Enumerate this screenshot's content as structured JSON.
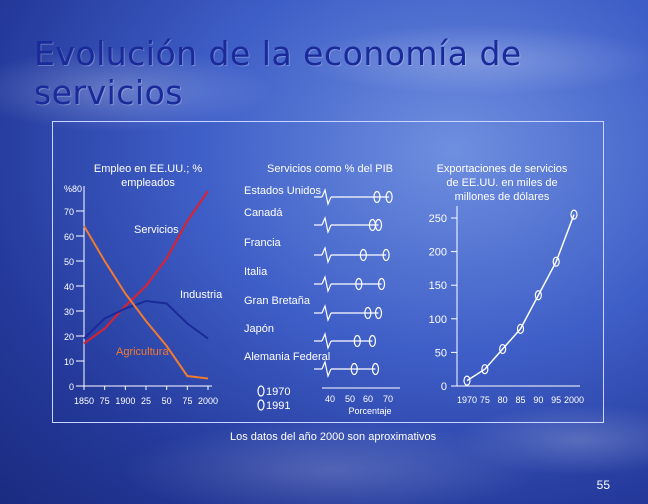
{
  "slide": {
    "title_line1": "Evolución de la economía de",
    "title_line2": "servicios",
    "footnote": "Los datos del año 2000 son aproximativos",
    "page_number": "55"
  },
  "chart_data": [
    {
      "type": "line",
      "title": "Empleo en EE.UU.; % empleados",
      "title_line1": "Empleo en EE.UU.; %",
      "title_line2": "empleados",
      "ylabel": "%80",
      "ylim": [
        0,
        80
      ],
      "y_ticks": [
        "0",
        "10",
        "20",
        "30",
        "40",
        "50",
        "60",
        "70"
      ],
      "x_ticks": [
        "1850",
        "75",
        "1900",
        "25",
        "50",
        "75",
        "2000"
      ],
      "xlim": [
        1850,
        2000
      ],
      "colors": {
        "Servicios": "#e0202a",
        "Industria": "#1a2a9a",
        "Agricultura": "#f07a30"
      },
      "series": [
        {
          "name": "Servicios",
          "x": [
            1850,
            1875,
            1900,
            1925,
            1950,
            1975,
            2000
          ],
          "values": [
            17,
            23,
            32,
            40,
            51,
            66,
            78
          ]
        },
        {
          "name": "Industria",
          "x": [
            1850,
            1875,
            1900,
            1925,
            1950,
            1975,
            2000
          ],
          "values": [
            19,
            27,
            31,
            34,
            33,
            25,
            19
          ]
        },
        {
          "name": "Agricultura",
          "x": [
            1850,
            1875,
            1900,
            1925,
            1950,
            1975,
            2000
          ],
          "values": [
            64,
            50,
            37,
            26,
            16,
            4,
            3
          ]
        }
      ]
    },
    {
      "type": "scatter",
      "title": "Servicios como % del PIB",
      "xlabel": "Porcentaje",
      "x_ticks": [
        "40",
        "50",
        "60",
        "70"
      ],
      "xlim": [
        30,
        75
      ],
      "legend": [
        "1970",
        "1991"
      ],
      "categories": [
        "Estados Unidos",
        "Canadá",
        "Francia",
        "Italia",
        "Gran Bretaña",
        "Japón",
        "Alemania Federal"
      ],
      "series": [
        {
          "name": "1970",
          "values": [
            61,
            58,
            52,
            49,
            55,
            48,
            46
          ]
        },
        {
          "name": "1991",
          "values": [
            69,
            62,
            67,
            64,
            62,
            58,
            60
          ]
        }
      ]
    },
    {
      "type": "line",
      "title": "Exportaciones de servicios de EE.UU. en miles de millones de dólares",
      "title_line1": "Exportaciones de servicios",
      "title_line2": "de EE.UU. en miles de",
      "title_line3": "millones de dólares",
      "y_ticks": [
        "0",
        "50",
        "100",
        "150",
        "200",
        "250"
      ],
      "ylim": [
        0,
        250
      ],
      "x_ticks": [
        "1970",
        "75",
        "80",
        "85",
        "90",
        "95",
        "2000"
      ],
      "xlim": [
        1970,
        2000
      ],
      "series": [
        {
          "name": "Exportaciones",
          "x": [
            1970,
            1975,
            1980,
            1985,
            1990,
            1995,
            2000
          ],
          "values": [
            8,
            25,
            55,
            85,
            135,
            185,
            255
          ]
        }
      ]
    }
  ]
}
